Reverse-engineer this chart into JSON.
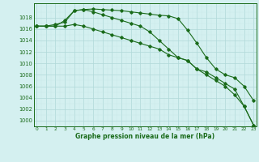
{
  "x": [
    0,
    1,
    2,
    3,
    4,
    5,
    6,
    7,
    8,
    9,
    10,
    11,
    12,
    13,
    14,
    15,
    16,
    17,
    18,
    19,
    20,
    21,
    22,
    23
  ],
  "line1": [
    1016.5,
    1016.5,
    1016.8,
    1017.2,
    1019.2,
    1019.4,
    1019.5,
    1019.4,
    1019.3,
    1019.2,
    1019.0,
    1018.8,
    1018.6,
    1018.4,
    1018.3,
    1017.8,
    1015.8,
    1013.5,
    1011.0,
    1009.0,
    1008.0,
    1007.5,
    1006.0,
    1003.5
  ],
  "line2": [
    1016.5,
    1016.5,
    1016.5,
    1016.5,
    1016.8,
    1016.5,
    1016.0,
    1015.5,
    1015.0,
    1014.5,
    1014.0,
    1013.5,
    1013.0,
    1012.5,
    1011.5,
    1011.0,
    1010.5,
    1009.0,
    1008.0,
    1007.0,
    1006.0,
    1004.5,
    1002.5,
    999.2
  ],
  "line3": [
    1016.5,
    1016.5,
    1016.5,
    1017.5,
    1019.2,
    1019.4,
    1019.0,
    1018.5,
    1018.0,
    1017.5,
    1017.0,
    1016.5,
    1015.5,
    1014.0,
    1012.5,
    1011.0,
    1010.5,
    1009.0,
    1008.5,
    1007.5,
    1006.5,
    1005.5,
    1002.5,
    999.2
  ],
  "line_color": "#1a6b1a",
  "bg_color": "#d4f0f0",
  "grid_major_color": "#b0d8d8",
  "grid_minor_color": "#c8e8e8",
  "ylabel_values": [
    1000,
    1002,
    1004,
    1006,
    1008,
    1010,
    1012,
    1014,
    1016,
    1018
  ],
  "xlabel": "Graphe pression niveau de la mer (hPa)",
  "ylim": [
    999.0,
    1020.5
  ],
  "xlim": [
    -0.3,
    23.3
  ]
}
